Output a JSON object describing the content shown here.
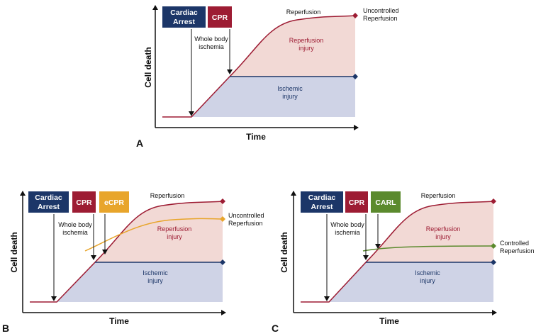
{
  "colors": {
    "navy": "#1c3668",
    "crimson": "#9d1c33",
    "orange": "#e8a52b",
    "green": "#5b8a2d",
    "reperfusion_fill": "#f2d9d5",
    "ischemic_fill": "#cfd3e6",
    "axis": "#111111"
  },
  "panels": [
    {
      "letter": "A",
      "ylabel": "Cell death",
      "xlabel": "Time",
      "boxes": [
        {
          "lines": [
            "Cardiac",
            "Arrest"
          ],
          "color": "#1c3668"
        },
        {
          "lines": [
            "CPR"
          ],
          "color": "#9d1c33"
        }
      ],
      "ischemia_label": [
        "Whole body",
        "ischemia"
      ],
      "reperfusion_label": "Reperfusion",
      "reperfusion_injury": [
        "Reperfusion",
        "injury"
      ],
      "ischemic_injury": [
        "Ischemic",
        "injury"
      ],
      "end_label": [
        "Uncontrolled",
        "Reperfusion"
      ],
      "end_label_color": "#9d1c33"
    },
    {
      "letter": "B",
      "ylabel": "Cell death",
      "xlabel": "Time",
      "boxes": [
        {
          "lines": [
            "Cardiac",
            "Arrest"
          ],
          "color": "#1c3668"
        },
        {
          "lines": [
            "CPR"
          ],
          "color": "#9d1c33"
        },
        {
          "lines": [
            "eCPR"
          ],
          "color": "#e8a52b"
        }
      ],
      "ischemia_label": [
        "Whole body",
        "ischemia"
      ],
      "reperfusion_label": "Reperfusion",
      "reperfusion_injury": [
        "Reperfusion",
        "injury"
      ],
      "ischemic_injury": [
        "Ischemic",
        "injury"
      ],
      "end_label": [
        "Uncontrolled",
        "Reperfusion"
      ],
      "end_label_color": "#e8a52b"
    },
    {
      "letter": "C",
      "ylabel": "Cell death",
      "xlabel": "Time",
      "boxes": [
        {
          "lines": [
            "Cardiac",
            "Arrest"
          ],
          "color": "#1c3668"
        },
        {
          "lines": [
            "CPR"
          ],
          "color": "#9d1c33"
        },
        {
          "lines": [
            "CARL"
          ],
          "color": "#5b8a2d"
        }
      ],
      "ischemia_label": [
        "Whole body",
        "ischemia"
      ],
      "reperfusion_label": "Reperfusion",
      "reperfusion_injury": [
        "Reperfusion",
        "injury"
      ],
      "ischemic_injury": [
        "Ischemic",
        "injury"
      ],
      "end_label": [
        "Controlled",
        "Reperfusion"
      ],
      "end_label_color": "#5b8a2d"
    }
  ]
}
